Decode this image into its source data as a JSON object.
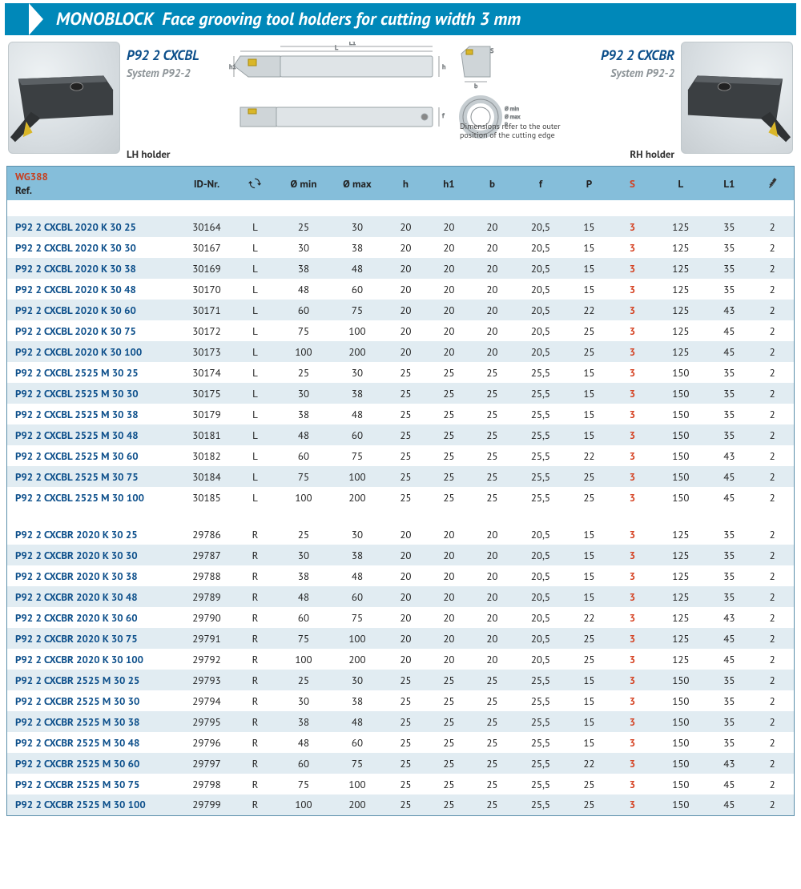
{
  "colors": {
    "brand": "#0088b9",
    "header_bg": "#85beda",
    "row_a": "#ffffff",
    "row_b": "#e1ecf2",
    "ref_blue": "#0b4e8a",
    "s_red": "#d43f1f",
    "wg_red": "#c63f1f",
    "border": "#c0c8cc"
  },
  "title": {
    "brand": "MONOBLOCK",
    "text": "Face grooving tool holders for cutting width 3 mm"
  },
  "left": {
    "code": "P92 2 CXCBL",
    "system": "System P92-2",
    "pos": "LH holder"
  },
  "right": {
    "code": "P92 2 CXCBR",
    "system": "System P92-2",
    "pos": "RH holder"
  },
  "dim_note": "Dimensions refer to the outer position of the cutting edge",
  "table": {
    "wg": "WG388",
    "ref": "Ref.",
    "columns": [
      "ID-Nr.",
      "hand",
      "Ø min",
      "Ø max",
      "h",
      "h1",
      "b",
      "f",
      "P",
      "S",
      "L",
      "L1",
      "screws"
    ],
    "s_column_index": 9,
    "groups": [
      [
        [
          "P92 2 CXCBL 2020 K 30 25",
          "30164",
          "L",
          "25",
          "30",
          "20",
          "20",
          "20",
          "20,5",
          "15",
          "3",
          "125",
          "35",
          "2"
        ],
        [
          "P92 2 CXCBL 2020 K 30 30",
          "30167",
          "L",
          "30",
          "38",
          "20",
          "20",
          "20",
          "20,5",
          "15",
          "3",
          "125",
          "35",
          "2"
        ],
        [
          "P92 2 CXCBL 2020 K 30 38",
          "30169",
          "L",
          "38",
          "48",
          "20",
          "20",
          "20",
          "20,5",
          "15",
          "3",
          "125",
          "35",
          "2"
        ],
        [
          "P92 2 CXCBL 2020 K 30 48",
          "30170",
          "L",
          "48",
          "60",
          "20",
          "20",
          "20",
          "20,5",
          "15",
          "3",
          "125",
          "35",
          "2"
        ],
        [
          "P92 2 CXCBL 2020 K 30 60",
          "30171",
          "L",
          "60",
          "75",
          "20",
          "20",
          "20",
          "20,5",
          "22",
          "3",
          "125",
          "43",
          "2"
        ],
        [
          "P92 2 CXCBL 2020 K 30 75",
          "30172",
          "L",
          "75",
          "100",
          "20",
          "20",
          "20",
          "20,5",
          "25",
          "3",
          "125",
          "45",
          "2"
        ],
        [
          "P92 2 CXCBL 2020 K 30 100",
          "30173",
          "L",
          "100",
          "200",
          "20",
          "20",
          "20",
          "20,5",
          "25",
          "3",
          "125",
          "45",
          "2"
        ],
        [
          "P92 2 CXCBL 2525 M 30 25",
          "30174",
          "L",
          "25",
          "30",
          "25",
          "25",
          "25",
          "25,5",
          "15",
          "3",
          "150",
          "35",
          "2"
        ],
        [
          "P92 2 CXCBL 2525 M 30 30",
          "30175",
          "L",
          "30",
          "38",
          "25",
          "25",
          "25",
          "25,5",
          "15",
          "3",
          "150",
          "35",
          "2"
        ],
        [
          "P92 2 CXCBL 2525 M 30 38",
          "30179",
          "L",
          "38",
          "48",
          "25",
          "25",
          "25",
          "25,5",
          "15",
          "3",
          "150",
          "35",
          "2"
        ],
        [
          "P92 2 CXCBL 2525 M 30 48",
          "30181",
          "L",
          "48",
          "60",
          "25",
          "25",
          "25",
          "25,5",
          "15",
          "3",
          "150",
          "35",
          "2"
        ],
        [
          "P92 2 CXCBL 2525 M 30 60",
          "30182",
          "L",
          "60",
          "75",
          "25",
          "25",
          "25",
          "25,5",
          "22",
          "3",
          "150",
          "43",
          "2"
        ],
        [
          "P92 2 CXCBL 2525 M 30 75",
          "30184",
          "L",
          "75",
          "100",
          "25",
          "25",
          "25",
          "25,5",
          "25",
          "3",
          "150",
          "45",
          "2"
        ],
        [
          "P92 2 CXCBL 2525 M 30 100",
          "30185",
          "L",
          "100",
          "200",
          "25",
          "25",
          "25",
          "25,5",
          "25",
          "3",
          "150",
          "45",
          "2"
        ]
      ],
      [
        [
          "P92 2 CXCBR 2020 K 30 25",
          "29786",
          "R",
          "25",
          "30",
          "20",
          "20",
          "20",
          "20,5",
          "15",
          "3",
          "125",
          "35",
          "2"
        ],
        [
          "P92 2 CXCBR 2020 K 30 30",
          "29787",
          "R",
          "30",
          "38",
          "20",
          "20",
          "20",
          "20,5",
          "15",
          "3",
          "125",
          "35",
          "2"
        ],
        [
          "P92 2 CXCBR 2020 K 30 38",
          "29788",
          "R",
          "38",
          "48",
          "20",
          "20",
          "20",
          "20,5",
          "15",
          "3",
          "125",
          "35",
          "2"
        ],
        [
          "P92 2 CXCBR 2020 K 30 48",
          "29789",
          "R",
          "48",
          "60",
          "20",
          "20",
          "20",
          "20,5",
          "15",
          "3",
          "125",
          "35",
          "2"
        ],
        [
          "P92 2 CXCBR 2020 K 30 60",
          "29790",
          "R",
          "60",
          "75",
          "20",
          "20",
          "20",
          "20,5",
          "22",
          "3",
          "125",
          "43",
          "2"
        ],
        [
          "P92 2 CXCBR 2020 K 30 75",
          "29791",
          "R",
          "75",
          "100",
          "20",
          "20",
          "20",
          "20,5",
          "25",
          "3",
          "125",
          "45",
          "2"
        ],
        [
          "P92 2 CXCBR 2020 K 30 100",
          "29792",
          "R",
          "100",
          "200",
          "20",
          "20",
          "20",
          "20,5",
          "25",
          "3",
          "125",
          "45",
          "2"
        ],
        [
          "P92 2 CXCBR 2525 M 30 25",
          "29793",
          "R",
          "25",
          "30",
          "25",
          "25",
          "25",
          "25,5",
          "15",
          "3",
          "150",
          "35",
          "2"
        ],
        [
          "P92 2 CXCBR 2525 M 30 30",
          "29794",
          "R",
          "30",
          "38",
          "25",
          "25",
          "25",
          "25,5",
          "15",
          "3",
          "150",
          "35",
          "2"
        ],
        [
          "P92 2 CXCBR 2525 M 30 38",
          "29795",
          "R",
          "38",
          "48",
          "25",
          "25",
          "25",
          "25,5",
          "15",
          "3",
          "150",
          "35",
          "2"
        ],
        [
          "P92 2 CXCBR 2525 M 30 48",
          "29796",
          "R",
          "48",
          "60",
          "25",
          "25",
          "25",
          "25,5",
          "15",
          "3",
          "150",
          "35",
          "2"
        ],
        [
          "P92 2 CXCBR 2525 M 30 60",
          "29797",
          "R",
          "60",
          "75",
          "25",
          "25",
          "25",
          "25,5",
          "22",
          "3",
          "150",
          "43",
          "2"
        ],
        [
          "P92 2 CXCBR 2525 M 30 75",
          "29798",
          "R",
          "75",
          "100",
          "25",
          "25",
          "25",
          "25,5",
          "25",
          "3",
          "150",
          "45",
          "2"
        ],
        [
          "P92 2 CXCBR 2525 M 30 100",
          "29799",
          "R",
          "100",
          "200",
          "25",
          "25",
          "25",
          "25,5",
          "25",
          "3",
          "150",
          "45",
          "2"
        ]
      ]
    ]
  }
}
